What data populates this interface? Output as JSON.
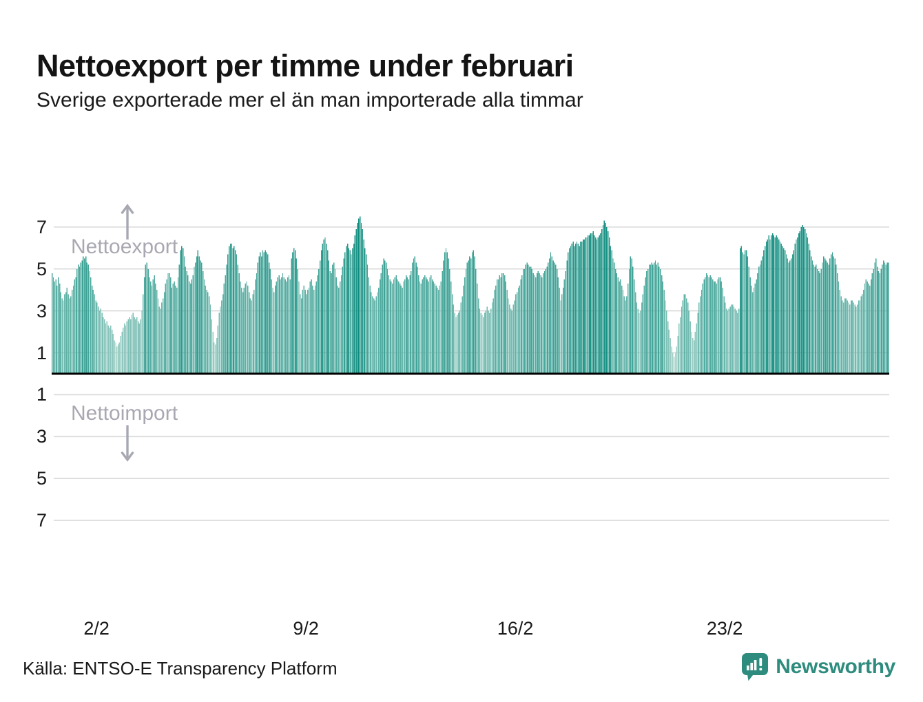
{
  "title": "Nettoexport per timme under februari",
  "subtitle": "Sverige exporterade mer el än man importerade alla timmar",
  "source": "Källa: ENTSO-E Transparency Platform",
  "brand": {
    "name": "Newsworthy",
    "color": "#2e8c7e",
    "icon": "bar-chart-speech-bubble-icon"
  },
  "annotations": {
    "export_label": "Nettoexport",
    "import_label": "Nettoimport",
    "arrow_color": "#a8a8b2"
  },
  "chart_data": {
    "type": "bar",
    "title": "Nettoexport per timme under februari",
    "xlabel": "",
    "ylabel": "",
    "x_tick_labels": [
      "2/2",
      "9/2",
      "16/2",
      "23/2"
    ],
    "x_tick_day_index": [
      2,
      9,
      16,
      23
    ],
    "y_tick_labels_positive": [
      "7",
      "5",
      "3",
      "1"
    ],
    "y_tick_labels_negative": [
      "1",
      "3",
      "5",
      "7"
    ],
    "ylim": [
      -7.8,
      7.8
    ],
    "grid": true,
    "days_in_month": 28,
    "hours_per_day": 24,
    "zero_line_color": "#000000",
    "gridline_color": "#d9d9d9",
    "color_scale": {
      "low": "#b3d8d0",
      "high": "#0d8c7e",
      "domain": [
        0.5,
        7.5
      ]
    },
    "values_by_day": [
      [
        4.8,
        4.6,
        4.4,
        4.5,
        4.2,
        4.6,
        4.3,
        3.9,
        3.6,
        3.5,
        3.8,
        3.9,
        4.1,
        3.8,
        3.6,
        3.7,
        4.0,
        4.2,
        4.5,
        4.6,
        5.0,
        5.2,
        5.1,
        5.3
      ],
      [
        5.4,
        5.6,
        5.5,
        5.6,
        5.3,
        5.2,
        4.9,
        4.6,
        4.2,
        4.0,
        3.8,
        3.5,
        3.4,
        3.2,
        3.0,
        3.1,
        2.9,
        2.7,
        2.6,
        2.4,
        2.5,
        2.3,
        2.2,
        2.3
      ],
      [
        2.1,
        1.9,
        1.6,
        1.5,
        1.3,
        1.4,
        1.5,
        1.8,
        2.0,
        2.2,
        2.4,
        2.3,
        2.5,
        2.6,
        2.7,
        2.6,
        2.8,
        2.9,
        2.7,
        2.6,
        2.7,
        2.5,
        2.4,
        2.6
      ],
      [
        3.0,
        3.8,
        4.6,
        5.2,
        5.3,
        5.0,
        4.6,
        4.4,
        4.2,
        4.5,
        4.7,
        4.3,
        4.0,
        3.6,
        3.2,
        3.1,
        3.4,
        3.6,
        3.9,
        4.3,
        4.5,
        4.8,
        4.8,
        4.6
      ],
      [
        4.1,
        4.3,
        4.4,
        4.2,
        4.1,
        4.6,
        5.2,
        5.9,
        6.1,
        6.0,
        5.6,
        5.1,
        4.9,
        4.7,
        4.4,
        4.3,
        4.5,
        4.7,
        5.1,
        5.3,
        5.6,
        5.9,
        5.6,
        5.4
      ],
      [
        5.3,
        4.9,
        4.5,
        4.2,
        4.0,
        3.9,
        3.7,
        3.3,
        2.6,
        2.0,
        1.5,
        1.4,
        1.7,
        2.3,
        2.9,
        3.2,
        3.5,
        3.8,
        4.3,
        4.7,
        5.2,
        5.7,
        6.1,
        6.2
      ],
      [
        6.2,
        6.0,
        6.1,
        5.9,
        5.7,
        5.2,
        4.8,
        4.4,
        4.1,
        3.9,
        4.1,
        4.3,
        4.4,
        4.2,
        3.9,
        3.6,
        3.5,
        3.8,
        4.0,
        4.5,
        4.8,
        5.3,
        5.6,
        5.8
      ],
      [
        5.6,
        5.9,
        5.8,
        5.9,
        5.8,
        5.7,
        5.3,
        5.0,
        4.5,
        4.1,
        3.9,
        4.2,
        4.4,
        4.6,
        4.7,
        4.5,
        4.6,
        4.8,
        4.6,
        4.5,
        4.4,
        4.6,
        4.7,
        4.5
      ],
      [
        5.5,
        5.8,
        6.0,
        5.9,
        5.5,
        5.0,
        4.4,
        3.8,
        3.6,
        4.0,
        4.2,
        4.0,
        3.8,
        4.0,
        4.1,
        4.4,
        4.5,
        4.2,
        4.0,
        4.2,
        4.4,
        4.7,
        5.0,
        5.4
      ],
      [
        5.9,
        6.2,
        6.4,
        6.5,
        6.2,
        5.9,
        5.4,
        4.9,
        4.8,
        5.2,
        5.3,
        5.0,
        4.6,
        4.2,
        4.1,
        4.4,
        4.7,
        5.1,
        5.5,
        5.8,
        6.1,
        6.2,
        6.0,
        5.9
      ],
      [
        5.7,
        6.0,
        6.2,
        6.6,
        6.9,
        7.2,
        7.4,
        7.5,
        7.2,
        6.9,
        6.4,
        6.0,
        5.7,
        5.2,
        4.6,
        4.2,
        3.9,
        3.7,
        3.6,
        3.5,
        3.7,
        3.9,
        4.1,
        4.5
      ],
      [
        4.8,
        5.2,
        5.5,
        5.4,
        5.3,
        5.0,
        4.7,
        4.5,
        4.4,
        4.3,
        4.5,
        4.6,
        4.7,
        4.5,
        4.4,
        4.3,
        4.2,
        4.1,
        4.4,
        4.5,
        4.7,
        4.6,
        4.5,
        4.7
      ],
      [
        4.9,
        5.3,
        5.5,
        5.6,
        5.3,
        5.1,
        4.7,
        4.4,
        4.3,
        4.5,
        4.6,
        4.7,
        4.6,
        4.5,
        4.4,
        4.6,
        4.7,
        4.5,
        4.4,
        4.3,
        4.2,
        4.1,
        4.0,
        4.2
      ],
      [
        4.4,
        4.9,
        5.4,
        5.8,
        6.0,
        5.8,
        5.5,
        5.0,
        4.4,
        3.8,
        3.3,
        2.9,
        2.7,
        2.8,
        2.9,
        3.0,
        3.4,
        3.7,
        4.2,
        4.6,
        5.0,
        5.3,
        5.4,
        5.6
      ],
      [
        5.5,
        5.8,
        5.9,
        5.6,
        5.0,
        4.3,
        3.6,
        3.1,
        2.9,
        2.8,
        2.7,
        2.9,
        3.0,
        3.2,
        3.0,
        2.9,
        3.1,
        3.4,
        3.6,
        4.0,
        4.2,
        4.5,
        4.5,
        4.7
      ],
      [
        4.6,
        4.8,
        4.8,
        4.7,
        4.4,
        4.0,
        3.6,
        3.3,
        3.1,
        3.0,
        3.3,
        3.5,
        3.8,
        3.9,
        4.1,
        4.2,
        4.5,
        4.7,
        5.0,
        5.0,
        5.2,
        5.3,
        5.2,
        5.1
      ],
      [
        5.1,
        5.0,
        4.8,
        4.7,
        4.6,
        4.8,
        4.9,
        4.8,
        4.7,
        4.6,
        4.8,
        4.9,
        5.0,
        5.1,
        5.3,
        5.5,
        5.8,
        5.6,
        5.4,
        5.3,
        5.2,
        5.0,
        4.6,
        4.1
      ],
      [
        3.5,
        3.8,
        4.1,
        4.5,
        4.9,
        5.4,
        5.8,
        6.0,
        6.1,
        6.2,
        6.3,
        6.1,
        6.2,
        6.3,
        6.2,
        6.1,
        6.3,
        6.3,
        6.4,
        6.4,
        6.5,
        6.5,
        6.6,
        6.6
      ],
      [
        6.7,
        6.7,
        6.8,
        6.6,
        6.5,
        6.4,
        6.5,
        6.6,
        6.7,
        6.9,
        7.1,
        7.3,
        7.2,
        7.0,
        6.8,
        6.5,
        6.1,
        5.9,
        5.5,
        5.3,
        5.0,
        4.8,
        4.6,
        4.4
      ],
      [
        4.5,
        4.2,
        4.0,
        3.7,
        3.5,
        3.7,
        4.3,
        5.0,
        5.6,
        5.5,
        5.1,
        4.5,
        3.9,
        3.4,
        3.1,
        2.9,
        3.0,
        3.4,
        3.8,
        4.2,
        4.6,
        4.9,
        5.0,
        5.2
      ],
      [
        5.2,
        5.3,
        5.2,
        5.3,
        5.4,
        5.2,
        5.3,
        5.1,
        5.0,
        4.7,
        4.4,
        4.0,
        3.5,
        3.0,
        2.5,
        2.1,
        1.7,
        1.3,
        1.0,
        0.8,
        1.0,
        1.3,
        1.8,
        2.4
      ],
      [
        2.7,
        3.2,
        3.5,
        3.8,
        3.8,
        3.6,
        3.4,
        3.0,
        2.5,
        2.0,
        1.7,
        1.6,
        2.0,
        2.4,
        2.9,
        3.4,
        3.7,
        4.0,
        4.3,
        4.5,
        4.6,
        4.8,
        4.7,
        4.6
      ],
      [
        4.7,
        4.6,
        4.5,
        4.4,
        4.4,
        4.3,
        4.5,
        4.6,
        4.6,
        4.4,
        4.1,
        3.7,
        3.4,
        3.1,
        3.0,
        3.1,
        3.2,
        3.3,
        3.3,
        3.2,
        3.1,
        3.0,
        2.9,
        3.1
      ],
      [
        6.0,
        6.1,
        5.8,
        5.7,
        5.9,
        5.9,
        5.6,
        5.1,
        4.6,
        4.2,
        3.9,
        4.1,
        4.3,
        4.5,
        4.8,
        5.1,
        5.2,
        5.4,
        5.6,
        5.9,
        6.1,
        6.3,
        6.4,
        6.6
      ],
      [
        6.4,
        6.6,
        6.7,
        6.6,
        6.5,
        6.6,
        6.5,
        6.4,
        6.3,
        6.2,
        6.1,
        6.0,
        5.9,
        5.7,
        5.5,
        5.3,
        5.4,
        5.5,
        5.7,
        5.9,
        6.2,
        6.4,
        6.5,
        6.7
      ],
      [
        6.8,
        7.0,
        7.1,
        7.0,
        6.9,
        6.7,
        6.5,
        6.2,
        5.9,
        5.6,
        5.4,
        5.2,
        5.1,
        5.2,
        5.0,
        4.9,
        4.8,
        5.0,
        5.3,
        5.6,
        5.5,
        5.4,
        5.3,
        5.2
      ],
      [
        5.5,
        5.7,
        5.8,
        5.6,
        5.5,
        5.2,
        4.8,
        4.4,
        4.0,
        3.7,
        3.5,
        3.4,
        3.6,
        3.6,
        3.5,
        3.4,
        3.3,
        3.5,
        3.5,
        3.4,
        3.3,
        3.2,
        3.3,
        3.5
      ],
      [
        3.5,
        3.7,
        3.8,
        4.0,
        4.3,
        4.5,
        4.4,
        4.3,
        4.2,
        4.5,
        4.8,
        5.0,
        5.3,
        5.5,
        5.1,
        4.9,
        4.8,
        5.0,
        5.2,
        5.4,
        5.3,
        5.2,
        5.3,
        5.3
      ]
    ]
  }
}
